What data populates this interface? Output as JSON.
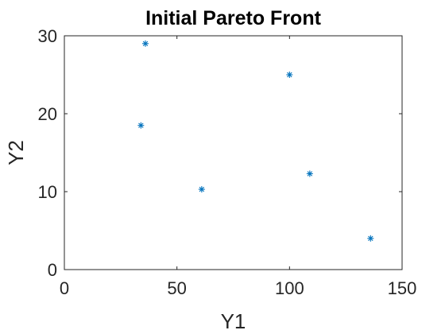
{
  "chart_data": {
    "type": "scatter",
    "title": "Initial Pareto Front",
    "xlabel": "Y1",
    "ylabel": "Y2",
    "xlim": [
      0,
      150
    ],
    "ylim": [
      0,
      30
    ],
    "xticks": [
      0,
      50,
      100,
      150
    ],
    "yticks": [
      0,
      10,
      20,
      30
    ],
    "xtick_labels": [
      "0",
      "50",
      "100",
      "150"
    ],
    "ytick_labels": [
      "0",
      "10",
      "20",
      "30"
    ],
    "grid": false,
    "marker": "asterisk",
    "marker_color": "#0072BD",
    "points": [
      {
        "x": 36,
        "y": 29
      },
      {
        "x": 100,
        "y": 25
      },
      {
        "x": 34,
        "y": 18.5
      },
      {
        "x": 109,
        "y": 12.3
      },
      {
        "x": 61,
        "y": 10.3
      },
      {
        "x": 136,
        "y": 4
      }
    ]
  }
}
